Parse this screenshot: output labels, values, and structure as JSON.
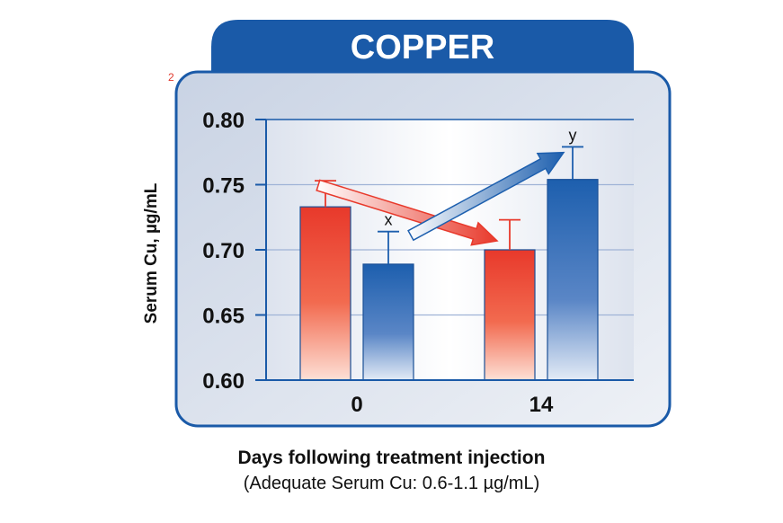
{
  "chart_data": {
    "type": "bar",
    "title": "COPPER",
    "note_marker": "2",
    "ylabel": "Serum Cu, µg/mL",
    "xlabel": "Days following treatment injection",
    "xlabel_sub": "(Adequate Serum Cu: 0.6-1.1 µg/mL)",
    "ylim": [
      0.6,
      0.8
    ],
    "yticks": [
      "0.80",
      "0.75",
      "0.70",
      "0.65",
      "0.60"
    ],
    "grid": true,
    "categories": [
      "0",
      "14"
    ],
    "series": [
      {
        "color": "#e8392b",
        "values": [
          0.733,
          0.7
        ],
        "error": [
          0.02,
          0.023
        ],
        "sig": [
          "",
          ""
        ]
      },
      {
        "color": "#1d5fae",
        "values": [
          0.689,
          0.754
        ],
        "error": [
          0.025,
          0.025
        ],
        "sig": [
          "x",
          "y"
        ]
      }
    ],
    "colors": {
      "frame": "#1a5aa8",
      "panel": "#dfe5ef",
      "tab": "#1a5aa8"
    }
  }
}
